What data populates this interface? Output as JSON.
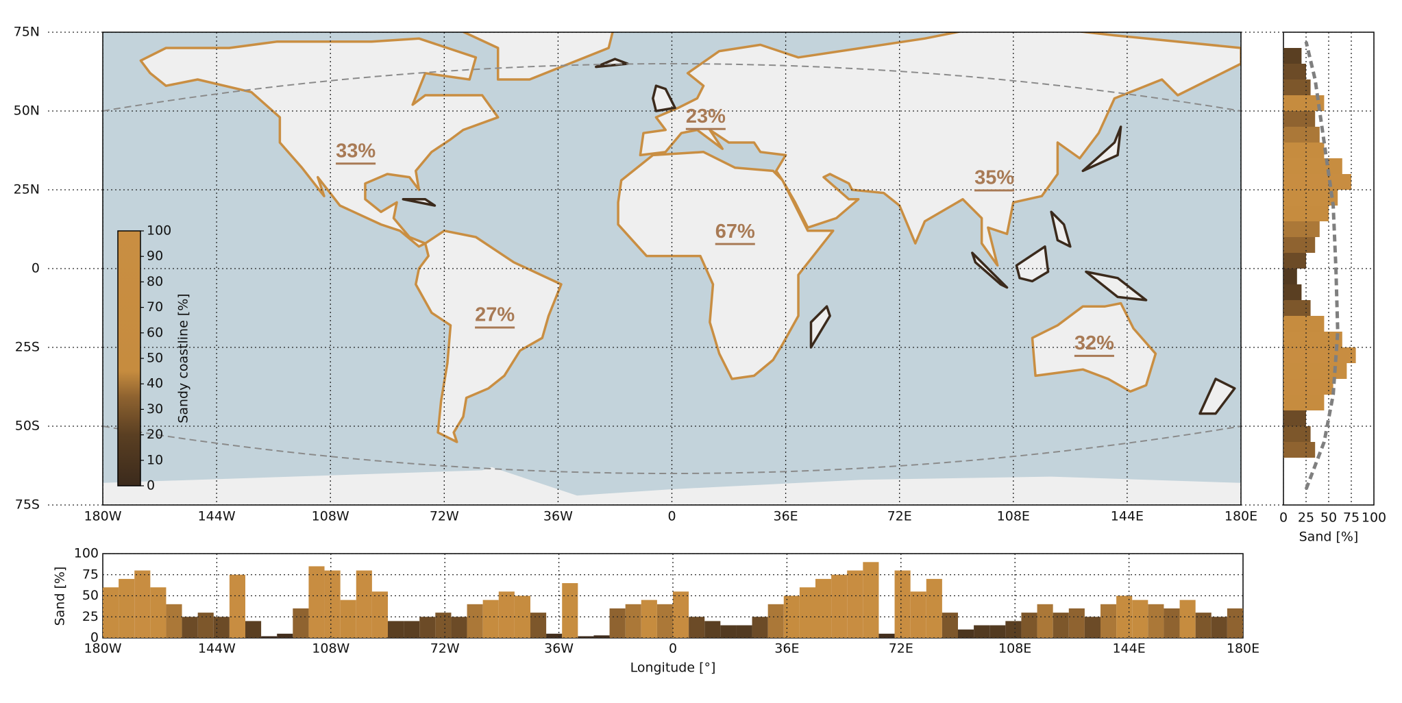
{
  "chart_data": [
    {
      "type": "map",
      "xlim": [
        -180,
        180
      ],
      "xticks": [
        {
          "value": -180,
          "label": "180W"
        },
        {
          "value": -144,
          "label": "144W"
        },
        {
          "value": -108,
          "label": "108W"
        },
        {
          "value": -72,
          "label": "72W"
        },
        {
          "value": -36,
          "label": "36W"
        },
        0,
        {
          "value": 36,
          "label": "36E"
        },
        {
          "value": 72,
          "label": "72E"
        },
        {
          "value": 108,
          "label": "108E"
        },
        {
          "value": 144,
          "label": "144E"
        },
        {
          "value": 180,
          "label": "180E"
        }
      ],
      "ylim": [
        -75,
        75
      ],
      "yticks": [
        {
          "value": -75,
          "label": "75S"
        },
        {
          "value": -50,
          "label": "50S"
        },
        {
          "value": -25,
          "label": "25S"
        },
        0,
        {
          "value": 25,
          "label": "25N"
        },
        {
          "value": 50,
          "label": "50N"
        },
        {
          "value": 75,
          "label": "75N"
        }
      ],
      "grid": true,
      "ocean_color": "#c3d3db",
      "land_color": "#efefef",
      "coast_color": "#c98e42",
      "dark_coast_color": "#3b2a1c",
      "annotations": [
        "33%",
        "23%",
        "35%",
        "67%",
        "27%",
        "32%"
      ],
      "annotation_color": "#a87a55",
      "colorbar": {
        "label": "Sandy coastline [%]",
        "range": [
          0,
          100
        ],
        "ticks": [
          0,
          10,
          20,
          30,
          40,
          50,
          60,
          70,
          80,
          90,
          100
        ]
      },
      "colormap": {
        "values": [
          0,
          20,
          35,
          45,
          100
        ],
        "colors": [
          "#3b2a1c",
          "#5a3f22",
          "#8f6330",
          "#c68c3f",
          "#c98e42"
        ]
      }
    },
    {
      "type": "histogram",
      "orientation": "horizontal",
      "xlabel": "Sand [%]",
      "xlim": [
        0,
        100
      ],
      "xticks": [
        0,
        25,
        50,
        75,
        100
      ],
      "ylim": [
        -75,
        75
      ],
      "yticks": [
        -75,
        -50,
        -25,
        0,
        25,
        50,
        75
      ],
      "grid": true,
      "bins": [
        -60,
        -55,
        -50,
        -45,
        -40,
        -35,
        -30,
        -25,
        -20,
        -15,
        -10,
        -5,
        0,
        5,
        10,
        15,
        20,
        25,
        30,
        35,
        40,
        45,
        50,
        55,
        60,
        65,
        70
      ],
      "values": [
        35,
        30,
        25,
        45,
        55,
        70,
        80,
        65,
        45,
        30,
        20,
        15,
        25,
        35,
        40,
        50,
        60,
        75,
        65,
        45,
        40,
        35,
        45,
        30,
        25,
        20
      ],
      "curve": {
        "x": [
          25,
          45,
          55,
          60,
          58,
          55,
          45,
          35,
          25
        ],
        "y": [
          -70,
          -55,
          -40,
          -20,
          0,
          20,
          40,
          60,
          72
        ],
        "color": "#7f7f7f"
      }
    },
    {
      "type": "histogram",
      "orientation": "vertical",
      "xlabel": "Longitude [°]",
      "ylabel": "Sand [%]",
      "xlim": [
        -180,
        180
      ],
      "xticks": [
        {
          "value": -180,
          "label": "180W"
        },
        {
          "value": -144,
          "label": "144W"
        },
        {
          "value": -108,
          "label": "108W"
        },
        {
          "value": -72,
          "label": "72W"
        },
        {
          "value": -36,
          "label": "36W"
        },
        0,
        {
          "value": 36,
          "label": "36E"
        },
        {
          "value": 72,
          "label": "72E"
        },
        {
          "value": 108,
          "label": "108E"
        },
        {
          "value": 144,
          "label": "144E"
        },
        {
          "value": 180,
          "label": "180E"
        }
      ],
      "ylim": [
        0,
        100
      ],
      "yticks": [
        0,
        25,
        50,
        75,
        100
      ],
      "grid": true,
      "bins": [
        -180,
        -175,
        -170,
        -165,
        -160,
        -155,
        -150,
        -145,
        -140,
        -135,
        -130,
        -125,
        -120,
        -115,
        -110,
        -105,
        -100,
        -95,
        -90,
        -85,
        -80,
        -75,
        -70,
        -65,
        -60,
        -55,
        -50,
        -45,
        -40,
        -35,
        -30,
        -25,
        -20,
        -15,
        -10,
        -5,
        0,
        5,
        10,
        15,
        20,
        25,
        30,
        35,
        40,
        45,
        50,
        55,
        60,
        65,
        70,
        75,
        80,
        85,
        90,
        95,
        100,
        105,
        110,
        115,
        120,
        125,
        130,
        135,
        140,
        145,
        150,
        155,
        160,
        165,
        170,
        175,
        180
      ],
      "values": [
        60,
        70,
        80,
        60,
        40,
        25,
        30,
        25,
        75,
        20,
        2,
        5,
        35,
        85,
        80,
        45,
        80,
        55,
        20,
        20,
        25,
        30,
        25,
        40,
        45,
        55,
        50,
        30,
        5,
        65,
        2,
        3,
        35,
        40,
        45,
        40,
        55,
        25,
        20,
        15,
        15,
        25,
        40,
        50,
        60,
        70,
        75,
        80,
        90,
        5,
        80,
        55,
        70,
        30,
        10,
        15,
        15,
        20,
        30,
        40,
        30,
        35,
        25,
        40,
        50,
        45,
        40,
        35,
        45,
        30,
        25,
        35
      ]
    }
  ]
}
